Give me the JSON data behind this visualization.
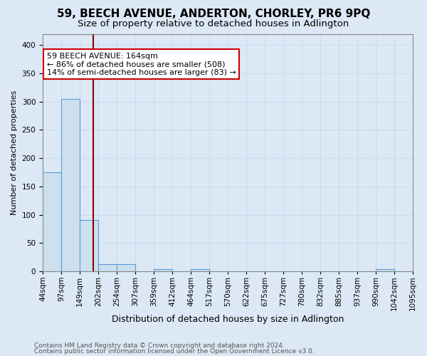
{
  "title": "59, BEECH AVENUE, ANDERTON, CHORLEY, PR6 9PQ",
  "subtitle": "Size of property relative to detached houses in Adlington",
  "xlabel": "Distribution of detached houses by size in Adlington",
  "ylabel": "Number of detached properties",
  "footnote1": "Contains HM Land Registry data © Crown copyright and database right 2024.",
  "footnote2": "Contains public sector information licensed under the Open Government Licence v3.0.",
  "bin_labels": [
    "44sqm",
    "97sqm",
    "149sqm",
    "202sqm",
    "254sqm",
    "307sqm",
    "359sqm",
    "412sqm",
    "464sqm",
    "517sqm",
    "570sqm",
    "622sqm",
    "675sqm",
    "727sqm",
    "780sqm",
    "832sqm",
    "885sqm",
    "937sqm",
    "990sqm",
    "1042sqm",
    "1095sqm"
  ],
  "bar_values": [
    175,
    305,
    90,
    12,
    12,
    0,
    3,
    0,
    4,
    0,
    0,
    0,
    0,
    0,
    0,
    0,
    0,
    0,
    3,
    0
  ],
  "bar_color": "#cce0f0",
  "bar_edge_color": "#5b9bd5",
  "red_line_x": 2.73,
  "red_line_color": "#8b0000",
  "annotation_text": "59 BEECH AVENUE: 164sqm\n← 86% of detached houses are smaller (508)\n14% of semi-detached houses are larger (83) →",
  "annotation_box_color": "white",
  "annotation_box_edge_color": "#cc0000",
  "ylim": [
    0,
    420
  ],
  "yticks": [
    0,
    50,
    100,
    150,
    200,
    250,
    300,
    350,
    400
  ],
  "grid_color": "#c8d8e8",
  "bg_color": "#dce8f5",
  "title_fontsize": 11,
  "subtitle_fontsize": 9.5,
  "xlabel_fontsize": 9,
  "ylabel_fontsize": 8,
  "tick_fontsize": 7.5,
  "annotation_fontsize": 8,
  "footnote_fontsize": 6.5
}
